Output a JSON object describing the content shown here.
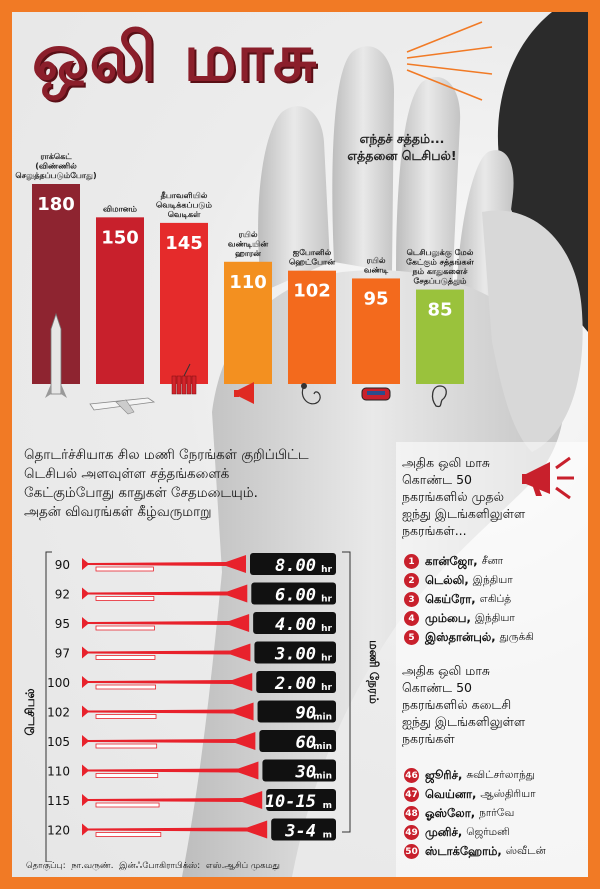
{
  "title": "ஒலி மாசு",
  "subtitle": {
    "line1": "எந்தச் சத்தம்...",
    "line2": "எத்தனை டெசிபல்!"
  },
  "colors": {
    "frame": "#f17a25",
    "title": "#8b1f2b",
    "bar_dark": "#8e2430",
    "bar_red": "#c8202c",
    "bar_bright": "#e52b2b",
    "bar_orange": "#f39020",
    "bar_green": "#9ac23c",
    "horn": "#e8222c",
    "display": "#111111",
    "badge": "#c8202c"
  },
  "chart_data": [
    {
      "type": "bar",
      "title": "எந்தச் சத்தம்... எத்தனை டெசிபல்!",
      "categories": [
        [
          "ராக்கெட்",
          "(விண்ணில்",
          "செலுத்தப்படும்போது)"
        ],
        [
          "விமானம்"
        ],
        [
          "தீபாவளியில்",
          "வெடிக்கப்படும்",
          "வெடிகள்"
        ],
        [
          "ரயில்",
          "வண்டியின்",
          "ஹாரன்"
        ],
        [
          "ஐபோனில்",
          "ஹெட்போன்"
        ],
        [
          "ரயில்",
          "வண்டி"
        ],
        [
          "டெசிபலுக்கு மேல்",
          "கேட்கும் சத்தங்கள்",
          "நம் காதுகளைச்",
          "சேதப்படுத்தும்"
        ]
      ],
      "values": [
        180,
        150,
        145,
        110,
        102,
        95,
        85
      ],
      "bar_colors": [
        "#8e2430",
        "#c8202c",
        "#e52b2b",
        "#f39020",
        "#f36a1d",
        "#f36a1d",
        "#9ac23c"
      ],
      "icons": [
        "rocket-icon",
        "airplane-icon",
        "firecracker-icon",
        "horn-icon",
        "headphone-icon",
        "train-icon",
        "ear-icon"
      ],
      "ylim": [
        0,
        200
      ]
    },
    {
      "type": "bar",
      "ylabel": "டெசிபல்",
      "xlabel": "மணி நேரம்",
      "categories": [
        90,
        92,
        95,
        97,
        100,
        102,
        105,
        110,
        115,
        120
      ],
      "durations": [
        {
          "text": "8.00",
          "unit": "hr"
        },
        {
          "text": "6.00",
          "unit": "hr"
        },
        {
          "text": "4.00",
          "unit": "hr"
        },
        {
          "text": "3.00",
          "unit": "hr"
        },
        {
          "text": "2.00",
          "unit": "hr"
        },
        {
          "text": "90",
          "unit": "min"
        },
        {
          "text": "60",
          "unit": "min"
        },
        {
          "text": "30",
          "unit": "min"
        },
        {
          "text": "10-15",
          "unit": "m"
        },
        {
          "text": "3-4",
          "unit": "m"
        }
      ],
      "duration_minutes": [
        480,
        360,
        240,
        180,
        120,
        90,
        60,
        30,
        12.5,
        3.5
      ]
    }
  ],
  "description": {
    "lines": [
      "தொடர்ச்சியாக சில மணி நேரங்கள் குறிப்பிட்ட",
      "டெசிபல் அளவுள்ள சத்தங்களைக்",
      "கேட்கும்போது காதுகள் சேதமடையும்.",
      "அதன் விவரங்கள் கீழ்வருமாறு"
    ]
  },
  "top_cities": {
    "heading": [
      "அதிக ஒலி மாசு",
      "கொண்ட 50",
      "நகரங்களில் முதல்",
      "ஐந்து இடங்களிலுள்ள",
      "நகரங்கள்..."
    ],
    "items": [
      {
        "rank": "1",
        "city": "கான்ஜோ,",
        "country": "சீனா"
      },
      {
        "rank": "2",
        "city": "டெல்லி,",
        "country": "இந்தியா"
      },
      {
        "rank": "3",
        "city": "கெய்ரோ,",
        "country": "எகிப்த்"
      },
      {
        "rank": "4",
        "city": "மும்பை,",
        "country": "இந்தியா"
      },
      {
        "rank": "5",
        "city": "இஸ்தான்புல்,",
        "country": "துருக்கி"
      }
    ]
  },
  "bottom_cities": {
    "heading": [
      "அதிக ஒலி மாசு",
      "கொண்ட 50",
      "நகரங்களில் கடைசி",
      "ஐந்து இடங்களிலுள்ள",
      "நகரங்கள்"
    ],
    "items": [
      {
        "rank": "46",
        "city": "ஜூரிச்,",
        "country": "சுவிட்சர்லாந்து"
      },
      {
        "rank": "47",
        "city": "வெய்னா,",
        "country": "ஆஸ்திரியா"
      },
      {
        "rank": "48",
        "city": "ஓஸ்லோ,",
        "country": "நார்வே"
      },
      {
        "rank": "49",
        "city": "முனிச்,",
        "country": "ஜெர்மனி"
      },
      {
        "rank": "50",
        "city": "ஸ்டாக்ஹோம்,",
        "country": "ஸ்வீடன்"
      }
    ]
  },
  "credits": {
    "text_label": "தொகுப்பு:",
    "text_author": "நா.வருண்.",
    "graphics_label": "இன்ஃபோகிராபிக்ஸ்:",
    "graphics_author": "எஸ்.ஆசிப் முகமது"
  }
}
